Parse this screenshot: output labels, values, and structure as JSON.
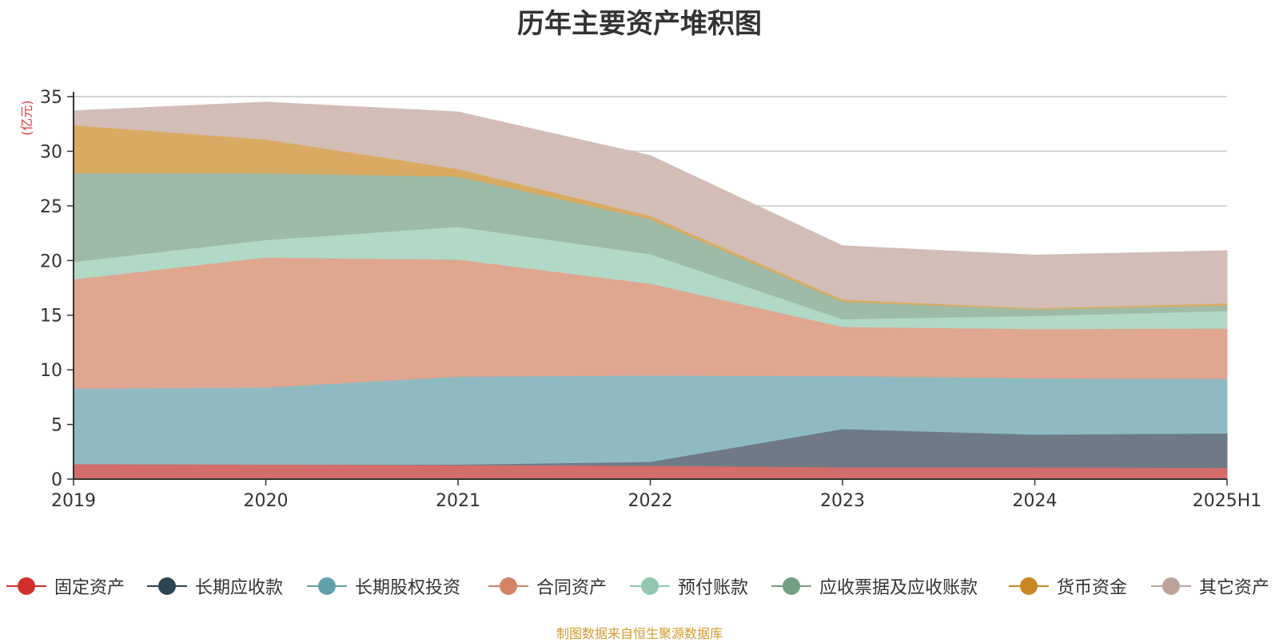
{
  "chart_data": {
    "type": "area",
    "stacked": true,
    "title": "历年主要资产堆积图",
    "ylabel": "(亿元)",
    "ylim": [
      0,
      35
    ],
    "yticks": [
      0,
      5,
      10,
      15,
      20,
      25,
      30,
      35
    ],
    "grid": true,
    "legend_position": "bottom",
    "source": "制图数据来自恒生聚源数据库",
    "categories": [
      "2019",
      "2020",
      "2021",
      "2022",
      "2023",
      "2024",
      "2025H1"
    ],
    "series": [
      {
        "name": "固定资产",
        "color": "#d0302c",
        "fill": "#d46c6a",
        "values": [
          1.4,
          1.35,
          1.3,
          1.25,
          1.1,
          1.1,
          1.05
        ]
      },
      {
        "name": "长期应收款",
        "color": "#2f4554",
        "fill": "#6e7b87",
        "values": [
          0,
          0,
          0.05,
          0.35,
          3.5,
          3.0,
          3.15
        ]
      },
      {
        "name": "长期股权投资",
        "color": "#61a0a8",
        "fill": "#90bac2",
        "values": [
          6.9,
          7.05,
          8.05,
          7.9,
          4.85,
          5.15,
          5.0
        ]
      },
      {
        "name": "合同资产",
        "color": "#d48265",
        "fill": "#dfa690",
        "values": [
          10.0,
          11.9,
          10.7,
          8.4,
          4.5,
          4.5,
          4.6
        ]
      },
      {
        "name": "预付账款",
        "color": "#91c7ae",
        "fill": "#b2d8c6",
        "values": [
          1.6,
          1.6,
          3.0,
          2.7,
          0.7,
          1.2,
          1.6
        ]
      },
      {
        "name": "应收票据及应收账款",
        "color": "#749f83",
        "fill": "#9ebba8",
        "values": [
          8.1,
          6.1,
          4.6,
          3.2,
          1.6,
          0.6,
          0.5
        ]
      },
      {
        "name": "货币资金",
        "color": "#ca8622",
        "fill": "#d9ab62",
        "values": [
          4.4,
          3.1,
          0.7,
          0.3,
          0.2,
          0.1,
          0.2
        ]
      },
      {
        "name": "其它资产",
        "color": "#bda29a",
        "fill": "#d2bdb7",
        "values": [
          1.3,
          3.4,
          5.2,
          5.5,
          4.9,
          4.85,
          4.8
        ]
      }
    ]
  }
}
